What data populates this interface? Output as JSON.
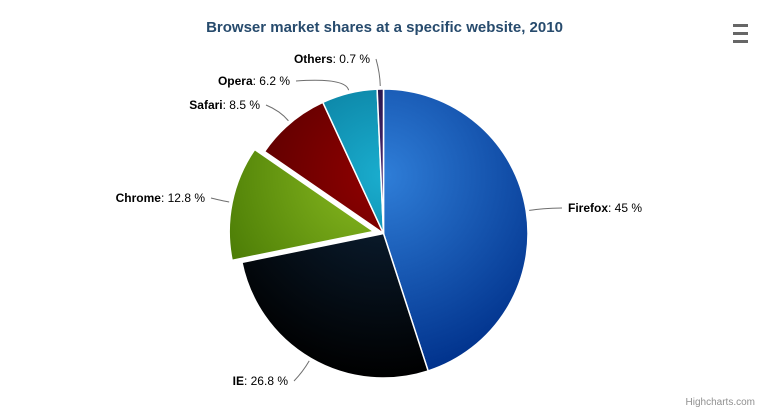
{
  "title": "Browser market shares at a specific website, 2010",
  "credits": "Highcharts.com",
  "icons": {
    "context_menu": "hamburger-icon"
  },
  "chart_data": {
    "type": "pie",
    "title": "Browser market shares at a specific website, 2010",
    "legend_position": "none",
    "label_format": "<name>: <value> %",
    "value_suffix": " %",
    "points": [
      {
        "name": "Firefox",
        "value": 45,
        "label_value": "45",
        "color": "#2f7ed8",
        "sliced": false
      },
      {
        "name": "IE",
        "value": 26.8,
        "label_value": "26.8",
        "color": "#0d233a",
        "sliced": false
      },
      {
        "name": "Chrome",
        "value": 12.8,
        "label_value": "12.8",
        "color": "#8bbc21",
        "sliced": true
      },
      {
        "name": "Safari",
        "value": 8.5,
        "label_value": "8.5",
        "color": "#910000",
        "sliced": false
      },
      {
        "name": "Opera",
        "value": 6.2,
        "label_value": "6.2",
        "color": "#1aadce",
        "sliced": false
      },
      {
        "name": "Others",
        "value": 0.7,
        "label_value": "0.7",
        "color": "#492970",
        "sliced": false
      }
    ],
    "colors": {
      "title_text": "#274b6d",
      "label_text": "#000000",
      "connector": "#6e6e6e",
      "slice_border": "#ffffff",
      "background": "#ffffff",
      "menu_icon": "#666666",
      "credits_text": "#909090"
    }
  }
}
